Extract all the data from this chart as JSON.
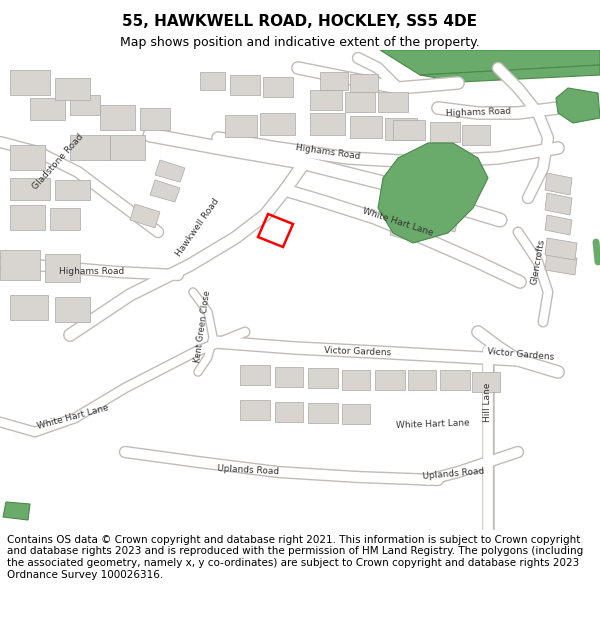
{
  "title": "55, HAWKWELL ROAD, HOCKLEY, SS5 4DE",
  "subtitle": "Map shows position and indicative extent of the property.",
  "footer": "Contains OS data © Crown copyright and database right 2021. This information is subject to Crown copyright and database rights 2023 and is reproduced with the permission of HM Land Registry. The polygons (including the associated geometry, namely x, y co-ordinates) are subject to Crown copyright and database rights 2023 Ordnance Survey 100026316.",
  "map_bg": "#f0ede8",
  "road_color": "#ffffff",
  "road_outline": "#c0bcb8",
  "building_color": "#d8d4cf",
  "building_outline": "#aaa8a4",
  "green_color": "#6aaa6a",
  "green_outline": "#4a8a4a",
  "red_polygon_color": "#ff0000",
  "title_fontsize": 11,
  "subtitle_fontsize": 9,
  "footer_fontsize": 7.5
}
